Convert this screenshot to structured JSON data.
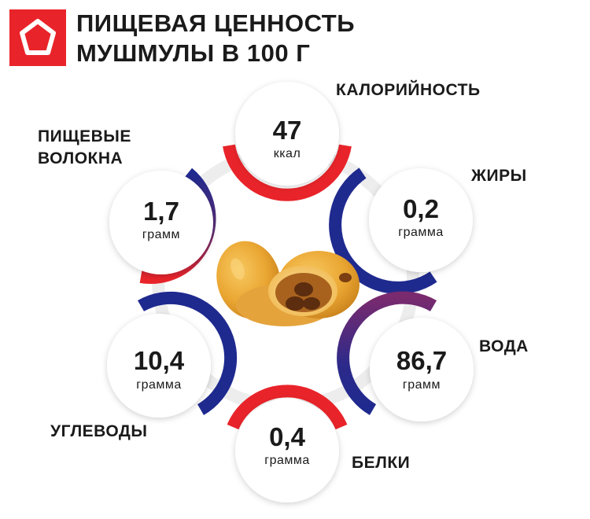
{
  "title": {
    "line1": "ПИЩЕВАЯ ЦЕННОСТЬ",
    "line2": "МУШМУЛЫ В 100 Г"
  },
  "colors": {
    "red": "#e8242a",
    "blue": "#1f2a8f",
    "purple": "#6a2a70",
    "text": "#1a1a1a"
  },
  "nutrients": [
    {
      "key": "calories",
      "label": [
        "КАЛОРИЙНОСТЬ"
      ],
      "value": "47",
      "unit": "ккал"
    },
    {
      "key": "fat",
      "label": [
        "ЖИРЫ"
      ],
      "value": "0,2",
      "unit": "грамма"
    },
    {
      "key": "water",
      "label": [
        "ВОДА"
      ],
      "value": "86,7",
      "unit": "грамм"
    },
    {
      "key": "protein",
      "label": [
        "БЕЛКИ"
      ],
      "value": "0,4",
      "unit": "грамма"
    },
    {
      "key": "carbs",
      "label": [
        "УГЛЕВОДЫ"
      ],
      "value": "10,4",
      "unit": "грамма"
    },
    {
      "key": "fiber",
      "label": [
        "ПИЩЕВЫЕ",
        "ВОЛОКНА"
      ],
      "value": "1,7",
      "unit": "грамм"
    }
  ]
}
